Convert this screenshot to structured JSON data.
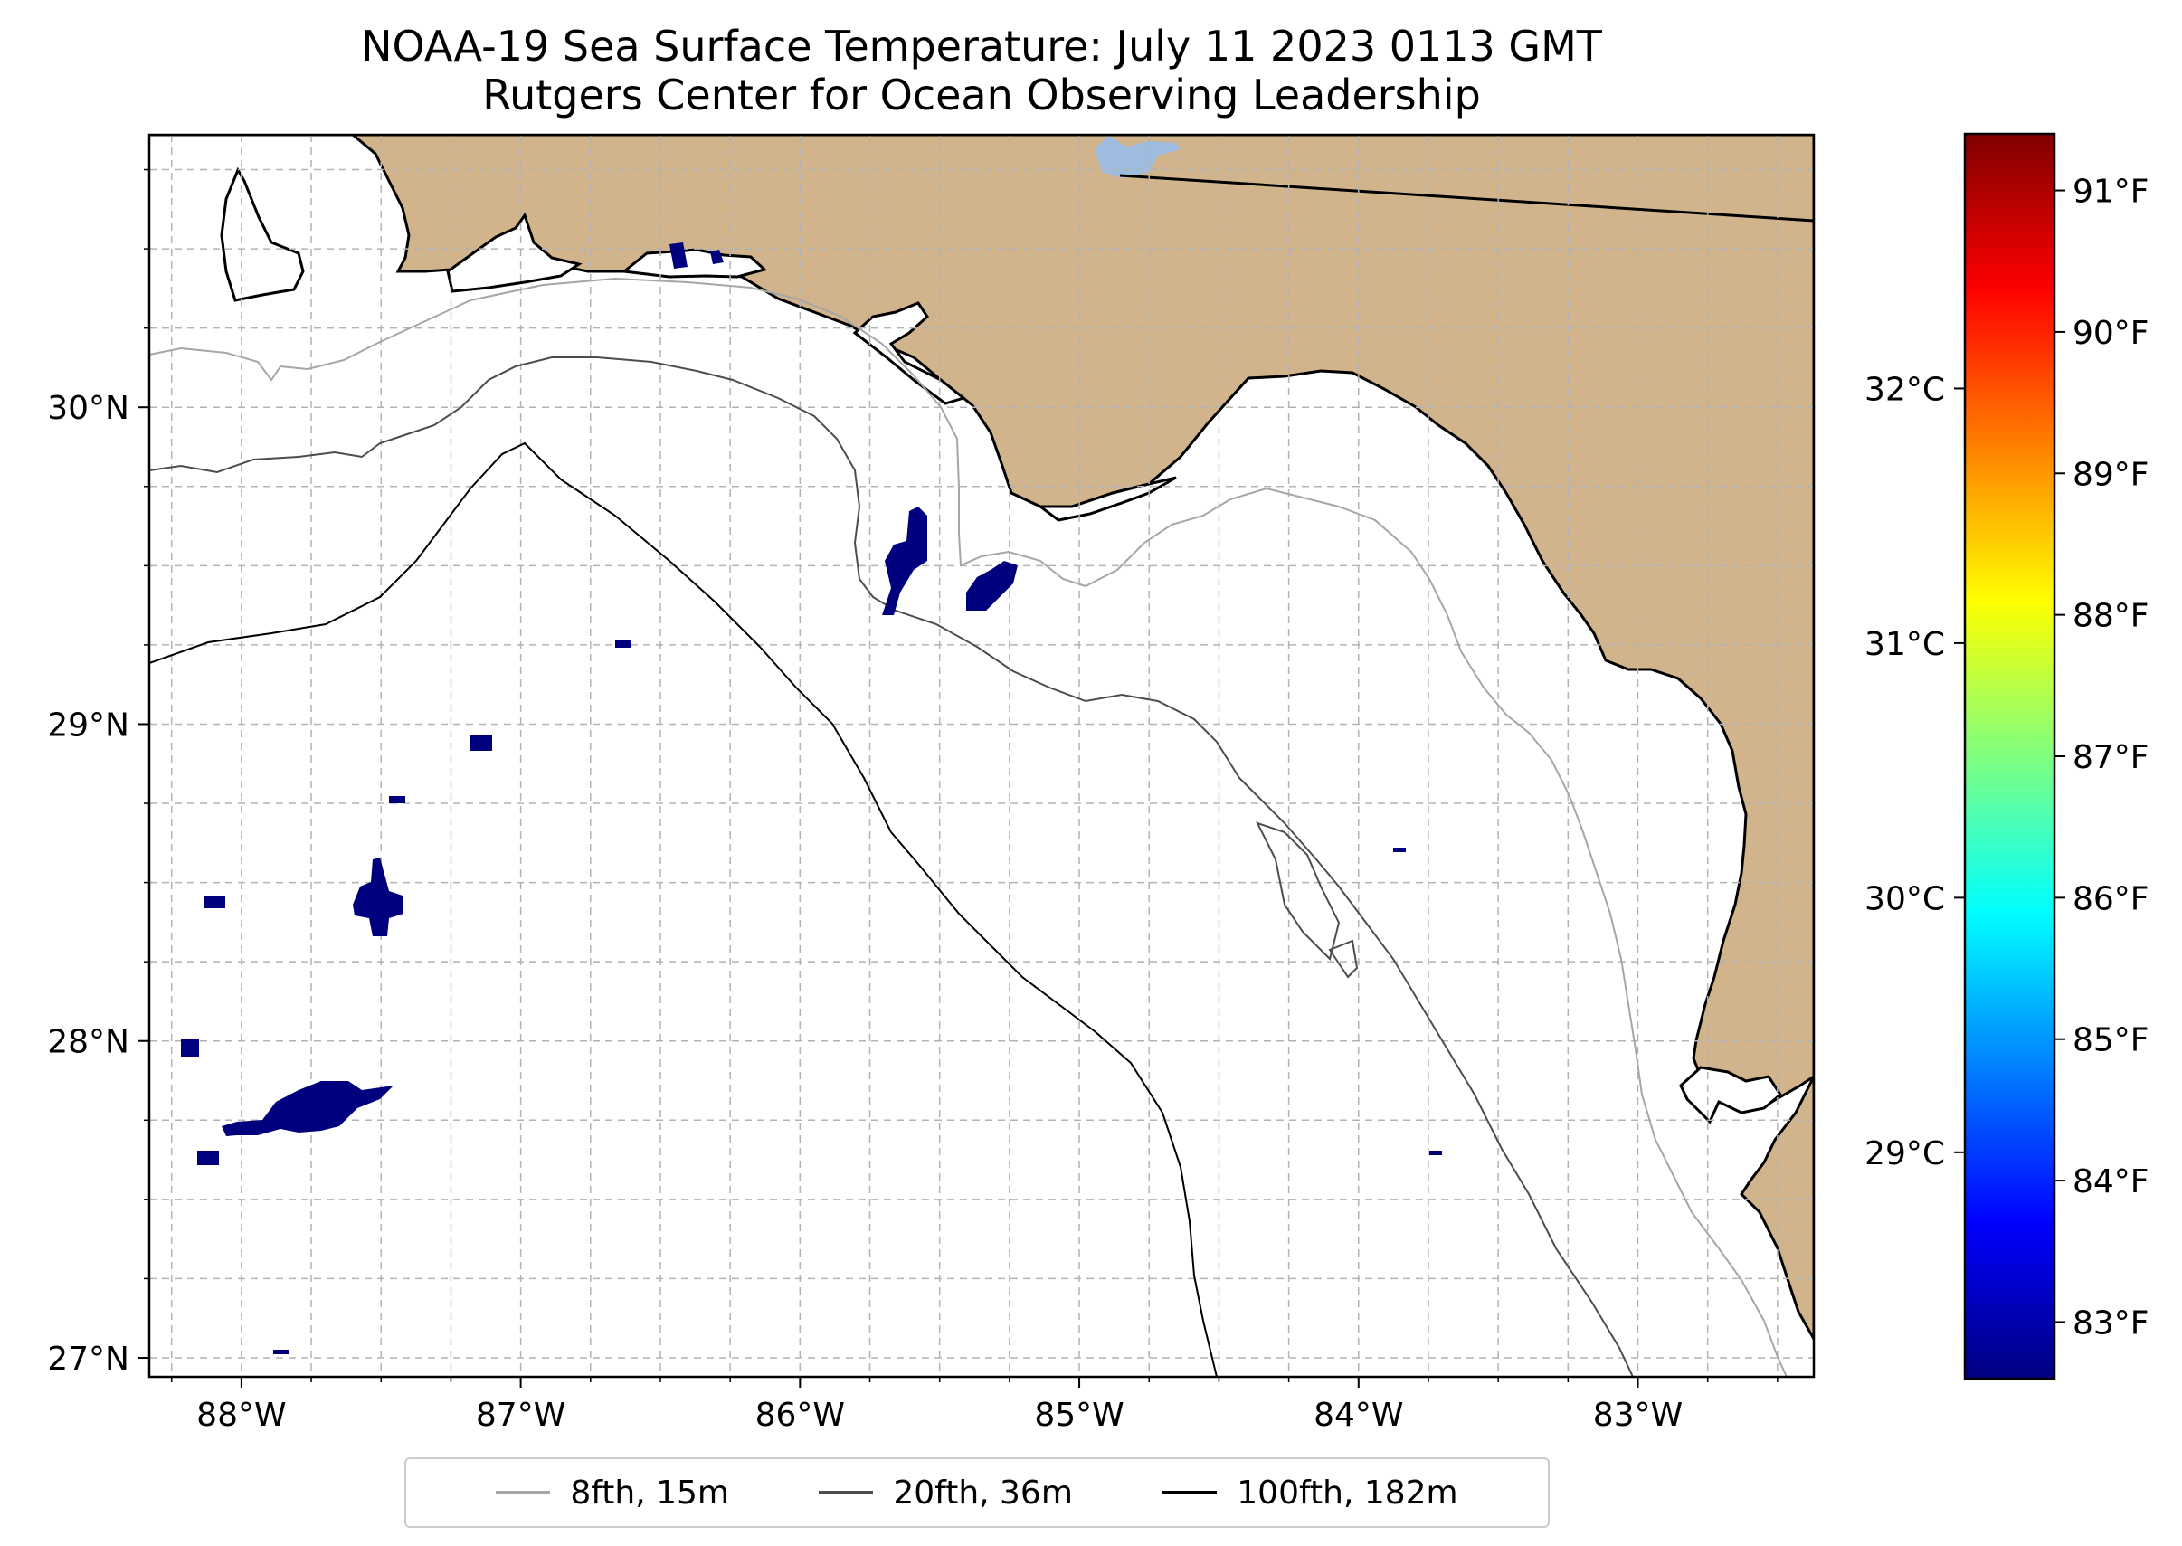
{
  "figure": {
    "title": "NOAA-19 Sea Surface Temperature: July 11 2023 0113 GMT",
    "subtitle": "Rutgers Center for Ocean Observing Leadership"
  },
  "map": {
    "lon_range": [
      -88.33,
      -82.37
    ],
    "lat_range": [
      26.94,
      30.86
    ],
    "lon_ticks": [
      {
        "value": -88,
        "label": "88°W"
      },
      {
        "value": -87,
        "label": "87°W"
      },
      {
        "value": -86,
        "label": "86°W"
      },
      {
        "value": -85,
        "label": "85°W"
      },
      {
        "value": -84,
        "label": "84°W"
      },
      {
        "value": -83,
        "label": "83°W"
      }
    ],
    "lat_ticks": [
      {
        "value": 27,
        "label": "27°N"
      },
      {
        "value": 28,
        "label": "28°N"
      },
      {
        "value": 29,
        "label": "29°N"
      },
      {
        "value": 30,
        "label": "30°N"
      }
    ],
    "gridlines": true,
    "land_color": "#d2b48c",
    "ocean_color": "#ffffff"
  },
  "legend": {
    "placement": "bottom-center",
    "entries": [
      {
        "label": "8fth, 15m",
        "color": "#a6a6a6"
      },
      {
        "label": "20fth, 36m",
        "color": "#4d4d4d"
      },
      {
        "label": "100fth, 182m",
        "color": "#000000"
      }
    ]
  },
  "colorbar": {
    "colormap": "jet",
    "celsius_ticks": [
      {
        "value": 29,
        "label": "29°C"
      },
      {
        "value": 30,
        "label": "30°C"
      },
      {
        "value": 31,
        "label": "31°C"
      },
      {
        "value": 32,
        "label": "32°C"
      }
    ],
    "fahrenheit_ticks": [
      {
        "value": 83,
        "label": "83°F"
      },
      {
        "value": 84,
        "label": "84°F"
      },
      {
        "value": 85,
        "label": "85°F"
      },
      {
        "value": 86,
        "label": "86°F"
      },
      {
        "value": 87,
        "label": "87°F"
      },
      {
        "value": 88,
        "label": "88°F"
      },
      {
        "value": 89,
        "label": "89°F"
      },
      {
        "value": 90,
        "label": "90°F"
      },
      {
        "value": 91,
        "label": "91°F"
      }
    ],
    "range_f": [
      82.6,
      91.4
    ]
  },
  "sst_patches": [
    {
      "lon": -87.65,
      "lat": 27.8,
      "temp_f": 82.8
    },
    {
      "lon": -87.52,
      "lat": 28.44,
      "temp_f": 82.8
    },
    {
      "lon": -85.62,
      "lat": 29.52,
      "temp_f": 83.2
    },
    {
      "lon": -85.33,
      "lat": 29.46,
      "temp_f": 83.4
    },
    {
      "lon": -86.44,
      "lat": 30.48,
      "temp_f": 83.0
    },
    {
      "lon": -87.14,
      "lat": 28.96,
      "temp_f": 82.8
    },
    {
      "lon": -88.1,
      "lat": 28.45,
      "temp_f": 82.8
    },
    {
      "lon": -88.2,
      "lat": 27.98,
      "temp_f": 82.8
    },
    {
      "lon": -88.13,
      "lat": 27.63,
      "temp_f": 82.8
    }
  ]
}
